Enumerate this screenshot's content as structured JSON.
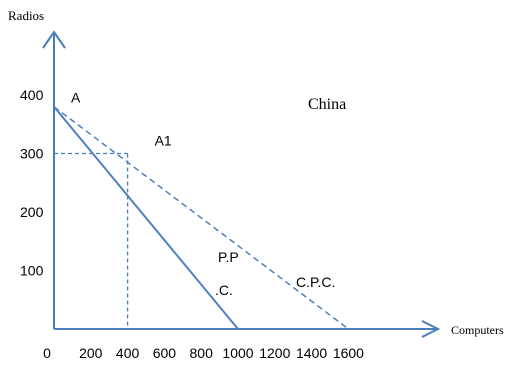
{
  "chart_data": {
    "type": "line",
    "ylabel": "Radios",
    "xlabel": "Computers",
    "xlim": [
      0,
      1600
    ],
    "ylim": [
      0,
      400
    ],
    "x_ticks": [
      "0",
      "200",
      "400",
      "600",
      "800",
      "1000",
      "1200",
      "1400",
      "1600"
    ],
    "y_ticks": [
      "100",
      "200",
      "300",
      "400"
    ],
    "country_label": "China",
    "series": [
      {
        "name": "P.P .C.",
        "style": "solid",
        "color": "#4f81bd",
        "x": [
          0,
          1000
        ],
        "y": [
          380,
          0
        ]
      },
      {
        "name": "C.P.C.",
        "style": "dashed",
        "color": "#4f81bd",
        "x": [
          0,
          1600
        ],
        "y": [
          380,
          0
        ]
      }
    ],
    "points": [
      {
        "label": "A",
        "x": 0,
        "y": 380
      },
      {
        "label": "A1",
        "x": 400,
        "y": 300
      }
    ],
    "series_labels": [
      {
        "line1": "P.P",
        "line2": ".C."
      },
      {
        "line1": "C.P.C."
      }
    ],
    "guides": {
      "x": 400,
      "y": 300,
      "style": "dashed"
    },
    "axis_color": "#4a7ebb"
  }
}
